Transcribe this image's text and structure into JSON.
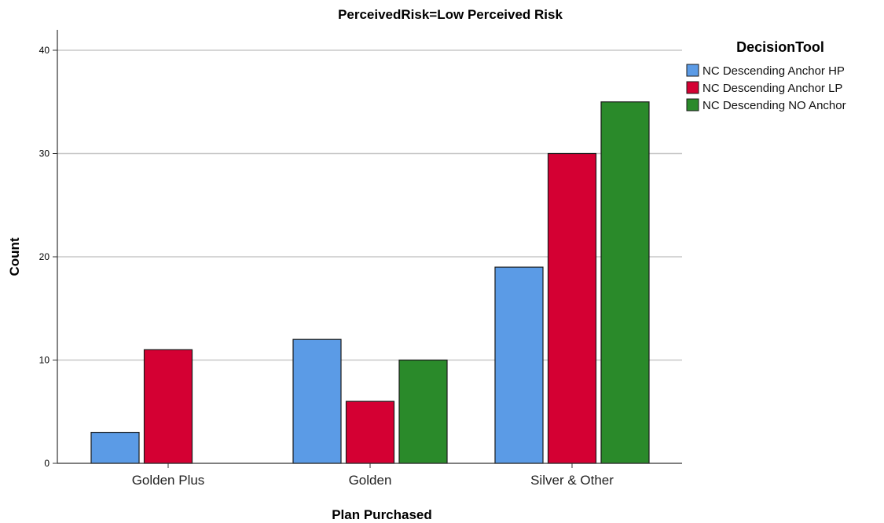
{
  "chart_data": {
    "type": "bar",
    "title": "PerceivedRisk=Low Perceived Risk",
    "xlabel": "Plan Purchased",
    "ylabel": "Count",
    "categories": [
      "Golden Plus",
      "Golden",
      "Silver & Other"
    ],
    "series": [
      {
        "name": "NC Descending Anchor HP",
        "color": "#5b9be6",
        "values": [
          3,
          12,
          19
        ]
      },
      {
        "name": "NC Descending Anchor LP",
        "color": "#d40033",
        "values": [
          11,
          6,
          30
        ]
      },
      {
        "name": "NC Descending NO Anchor",
        "color": "#2a8a2a",
        "values": [
          0,
          10,
          35
        ]
      }
    ],
    "ylim": [
      0,
      42
    ],
    "yticks": [
      0,
      10,
      20,
      30,
      40
    ],
    "grid": true,
    "legend": {
      "title": "DecisionTool",
      "position": "top-right"
    }
  }
}
